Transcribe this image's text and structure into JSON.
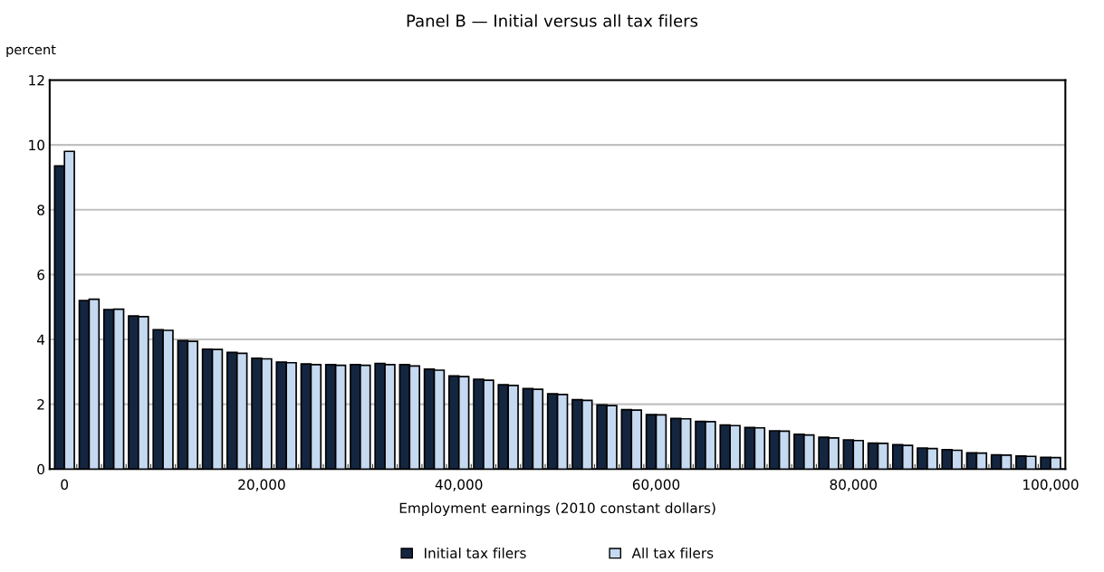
{
  "chart_data": {
    "type": "bar",
    "title": "Panel B — Initial versus all tax filers",
    "ylabel": "percent",
    "xlabel": "Employment earnings (2010 constant dollars)",
    "categories": [
      "0",
      null,
      null,
      null,
      null,
      null,
      null,
      null,
      "20,000",
      null,
      null,
      null,
      null,
      null,
      null,
      null,
      "40,000",
      null,
      null,
      null,
      null,
      null,
      null,
      null,
      "60,000",
      null,
      null,
      null,
      null,
      null,
      null,
      null,
      "80,000",
      null,
      null,
      null,
      null,
      null,
      null,
      null,
      "100,000"
    ],
    "series": [
      {
        "name": "Initial tax filers",
        "color": "#14253f",
        "values": [
          9.35,
          5.2,
          4.92,
          4.72,
          4.3,
          3.96,
          3.7,
          3.6,
          3.42,
          3.3,
          3.24,
          3.22,
          3.22,
          3.26,
          3.22,
          3.08,
          2.87,
          2.77,
          2.6,
          2.48,
          2.32,
          2.14,
          1.98,
          1.83,
          1.68,
          1.56,
          1.47,
          1.36,
          1.28,
          1.18,
          1.07,
          0.98,
          0.9,
          0.8,
          0.75,
          0.65,
          0.6,
          0.5,
          0.44,
          0.4,
          0.36
        ]
      },
      {
        "name": "All tax filers",
        "color": "#c5d9f1",
        "values": [
          9.8,
          5.24,
          4.93,
          4.7,
          4.28,
          3.94,
          3.69,
          3.57,
          3.4,
          3.28,
          3.22,
          3.2,
          3.2,
          3.22,
          3.18,
          3.05,
          2.85,
          2.74,
          2.58,
          2.46,
          2.3,
          2.12,
          1.96,
          1.82,
          1.67,
          1.55,
          1.46,
          1.34,
          1.27,
          1.17,
          1.05,
          0.96,
          0.88,
          0.79,
          0.73,
          0.63,
          0.58,
          0.49,
          0.43,
          0.39,
          0.35
        ]
      }
    ],
    "ylim": [
      0,
      12
    ],
    "yticks": [
      0,
      2,
      4,
      6,
      8,
      10,
      12
    ],
    "grid": "y",
    "legend": "bottom"
  }
}
